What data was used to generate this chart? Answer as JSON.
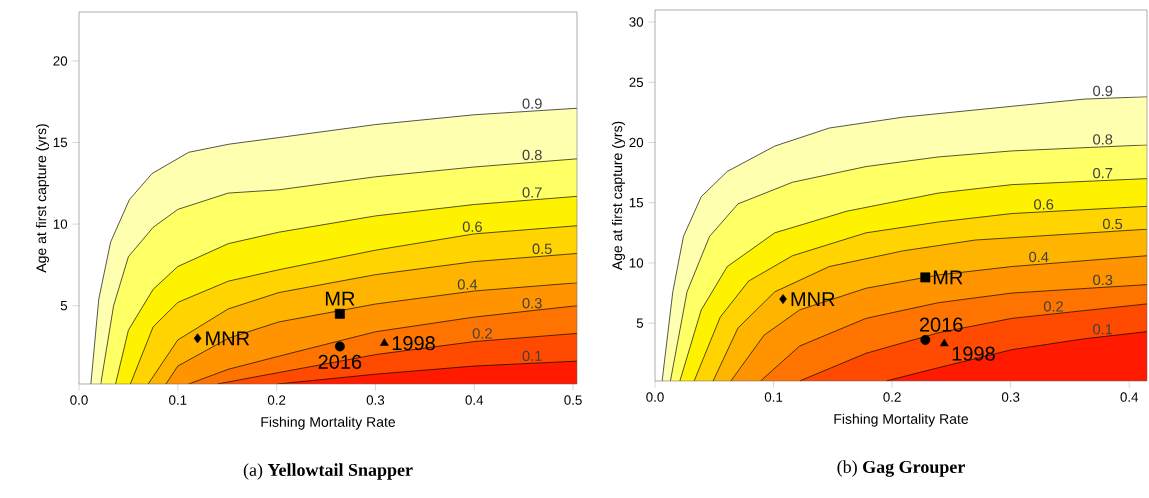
{
  "chart_data": [
    {
      "type": "area",
      "title": "(a) **Yellowtail Snapper**",
      "xlabel": "Fishing Mortality Rate",
      "ylabel": "Age at first capture (yrs)",
      "xlim": [
        0,
        0.504
      ],
      "ylim": [
        0.2,
        23
      ],
      "xticks": [
        {
          "value": 0,
          "label": "0.0"
        },
        0.1,
        0.2,
        0.3,
        0.4,
        0.5
      ],
      "yticks": [
        5,
        10,
        15,
        20
      ],
      "series": [
        {
          "name": "0.9",
          "color": "#ffffb0",
          "x": [
            0.012,
            0.02,
            0.032,
            0.051,
            0.074,
            0.111,
            0.152,
            0.202,
            0.3,
            0.4,
            0.504
          ],
          "values": [
            0.2,
            5.4,
            8.9,
            11.5,
            13.1,
            14.4,
            14.9,
            15.3,
            16.1,
            16.7,
            17.1
          ]
        },
        {
          "name": "0.8",
          "color": "#ffff66",
          "x": [
            0.022,
            0.035,
            0.05,
            0.075,
            0.1,
            0.151,
            0.202,
            0.3,
            0.4,
            0.504
          ],
          "values": [
            0.2,
            5.0,
            8.0,
            9.8,
            10.9,
            11.9,
            12.1,
            12.9,
            13.5,
            14.0
          ]
        },
        {
          "name": "0.7",
          "color": "#fff200",
          "x": [
            0.037,
            0.05,
            0.075,
            0.1,
            0.151,
            0.202,
            0.3,
            0.4,
            0.504
          ],
          "values": [
            0.2,
            3.5,
            6.0,
            7.4,
            8.8,
            9.5,
            10.5,
            11.2,
            11.7
          ]
        },
        {
          "name": "0.6",
          "color": "#ffd400",
          "x": [
            0.052,
            0.075,
            0.1,
            0.151,
            0.202,
            0.3,
            0.4,
            0.504
          ],
          "values": [
            0.2,
            3.7,
            5.2,
            6.5,
            7.2,
            8.4,
            9.4,
            9.9
          ]
        },
        {
          "name": "0.5",
          "color": "#ffb400",
          "x": [
            0.07,
            0.1,
            0.151,
            0.202,
            0.3,
            0.4,
            0.504
          ],
          "values": [
            0.2,
            2.9,
            4.8,
            5.8,
            6.9,
            7.7,
            8.2
          ]
        },
        {
          "name": "0.4",
          "color": "#ff9400",
          "x": [
            0.088,
            0.1,
            0.151,
            0.202,
            0.3,
            0.4,
            0.504
          ],
          "values": [
            0.2,
            1.3,
            3.0,
            4.0,
            5.1,
            5.9,
            6.4
          ]
        },
        {
          "name": "0.3",
          "color": "#ff7400",
          "x": [
            0.111,
            0.151,
            0.202,
            0.3,
            0.4,
            0.504
          ],
          "values": [
            0.2,
            1.1,
            1.9,
            3.4,
            4.3,
            5.0
          ]
        },
        {
          "name": "0.2",
          "color": "#ff4a00",
          "x": [
            0.14,
            0.202,
            0.3,
            0.4,
            0.504
          ],
          "values": [
            0.2,
            0.9,
            2.0,
            2.8,
            3.3
          ]
        },
        {
          "name": "0.1",
          "color": "#ff1a00",
          "x": [
            0.201,
            0.3,
            0.4,
            0.504
          ],
          "values": [
            0.2,
            0.8,
            1.3,
            1.6
          ]
        },
        {
          "name": "MNR",
          "type": "scatter",
          "marker": "diamond",
          "color": "#000000",
          "x": [
            0.12
          ],
          "values": [
            3.0
          ]
        },
        {
          "name": "MR",
          "type": "scatter",
          "marker": "square",
          "color": "#000000",
          "x": [
            0.264
          ],
          "values": [
            4.5
          ]
        },
        {
          "name": "2016",
          "type": "scatter",
          "marker": "circle",
          "color": "#000000",
          "x": [
            0.264
          ],
          "values": [
            2.5
          ]
        },
        {
          "name": "1998",
          "type": "scatter",
          "marker": "triangle",
          "color": "#000000",
          "x": [
            0.309
          ],
          "values": [
            2.7
          ]
        }
      ]
    },
    {
      "type": "area",
      "title": "(b) **Gag Grouper**",
      "xlabel": "Fishing Mortality Rate",
      "ylabel": "Age at first capture (yrs)",
      "xlim": [
        0,
        0.415
      ],
      "ylim": [
        0.2,
        31
      ],
      "xticks": [
        {
          "value": 0,
          "label": "0.0"
        },
        0.1,
        0.2,
        0.3,
        0.4
      ],
      "yticks": [
        5,
        10,
        15,
        20,
        25,
        30
      ],
      "series": [
        {
          "name": "0.9",
          "color": "#ffffb0",
          "x": [
            0.006,
            0.015,
            0.024,
            0.039,
            0.061,
            0.101,
            0.147,
            0.209,
            0.27,
            0.362,
            0.415
          ],
          "values": [
            0.2,
            7.6,
            12.2,
            15.5,
            17.6,
            19.7,
            21.2,
            22.1,
            22.7,
            23.6,
            23.8
          ]
        },
        {
          "name": "0.8",
          "color": "#ffff66",
          "x": [
            0.013,
            0.027,
            0.046,
            0.07,
            0.116,
            0.178,
            0.239,
            0.301,
            0.415
          ],
          "values": [
            0.2,
            7.6,
            12.2,
            14.9,
            16.7,
            18.0,
            18.8,
            19.3,
            19.8
          ]
        },
        {
          "name": "0.7",
          "color": "#fff200",
          "x": [
            0.021,
            0.039,
            0.061,
            0.101,
            0.162,
            0.239,
            0.301,
            0.415
          ],
          "values": [
            0.2,
            6.1,
            9.7,
            12.5,
            14.3,
            15.8,
            16.5,
            17.0
          ]
        },
        {
          "name": "0.6",
          "color": "#ffd400",
          "x": [
            0.033,
            0.055,
            0.079,
            0.116,
            0.178,
            0.239,
            0.301,
            0.415
          ],
          "values": [
            0.2,
            5.5,
            8.5,
            10.6,
            12.5,
            13.4,
            14.1,
            14.7
          ]
        },
        {
          "name": "0.5",
          "color": "#ffb400",
          "x": [
            0.049,
            0.07,
            0.101,
            0.147,
            0.209,
            0.27,
            0.415
          ],
          "values": [
            0.2,
            4.6,
            7.6,
            9.7,
            11.0,
            11.9,
            12.8
          ]
        },
        {
          "name": "0.4",
          "color": "#ff9400",
          "x": [
            0.064,
            0.092,
            0.122,
            0.178,
            0.239,
            0.301,
            0.415
          ],
          "values": [
            0.2,
            4.0,
            6.1,
            7.9,
            9.0,
            9.7,
            10.6
          ]
        },
        {
          "name": "0.3",
          "color": "#ff7400",
          "x": [
            0.089,
            0.122,
            0.178,
            0.239,
            0.301,
            0.415
          ],
          "values": [
            0.2,
            3.1,
            5.4,
            6.7,
            7.5,
            8.2
          ]
        },
        {
          "name": "0.2",
          "color": "#ff4a00",
          "x": [
            0.122,
            0.178,
            0.239,
            0.301,
            0.415
          ],
          "values": [
            0.2,
            2.5,
            4.2,
            5.4,
            6.6
          ]
        },
        {
          "name": "0.1",
          "color": "#ff1a00",
          "x": [
            0.195,
            0.239,
            0.301,
            0.362,
            0.415
          ],
          "values": [
            0.2,
            1.3,
            2.8,
            3.7,
            4.3
          ]
        },
        {
          "name": "MNR",
          "type": "scatter",
          "marker": "diamond",
          "color": "#000000",
          "x": [
            0.108
          ],
          "values": [
            7.0
          ]
        },
        {
          "name": "MR",
          "type": "scatter",
          "marker": "square",
          "color": "#000000",
          "x": [
            0.228
          ],
          "values": [
            8.8
          ]
        },
        {
          "name": "2016",
          "type": "scatter",
          "marker": "circle",
          "color": "#000000",
          "x": [
            0.228
          ],
          "values": [
            3.6
          ]
        },
        {
          "name": "1998",
          "type": "scatter",
          "marker": "triangle",
          "color": "#000000",
          "x": [
            0.244
          ],
          "values": [
            3.3
          ]
        }
      ]
    }
  ]
}
